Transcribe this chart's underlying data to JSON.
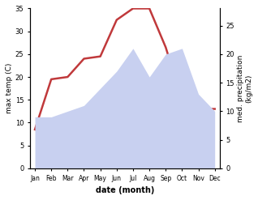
{
  "months": [
    "Jan",
    "Feb",
    "Mar",
    "Apr",
    "May",
    "Jun",
    "Jul",
    "Aug",
    "Sep",
    "Oct",
    "Nov",
    "Dec"
  ],
  "temp": [
    8.5,
    19.5,
    20.0,
    24.0,
    24.5,
    32.5,
    35.0,
    35.0,
    26.5,
    15.0,
    13.0,
    13.0
  ],
  "precip": [
    9,
    9,
    10,
    11,
    14,
    17,
    21,
    16,
    20,
    21,
    13,
    10
  ],
  "temp_color": "#c0393b",
  "precip_fill_color": "#c8d0f0",
  "ylabel_left": "max temp (C)",
  "ylabel_right": "med. precipitation\n(kg/m2)",
  "xlabel": "date (month)",
  "ylim_left": [
    0,
    35
  ],
  "ylim_right": [
    0,
    28
  ],
  "yticks_left": [
    0,
    5,
    10,
    15,
    20,
    25,
    30,
    35
  ],
  "yticks_right": [
    0,
    5,
    10,
    15,
    20,
    25
  ]
}
